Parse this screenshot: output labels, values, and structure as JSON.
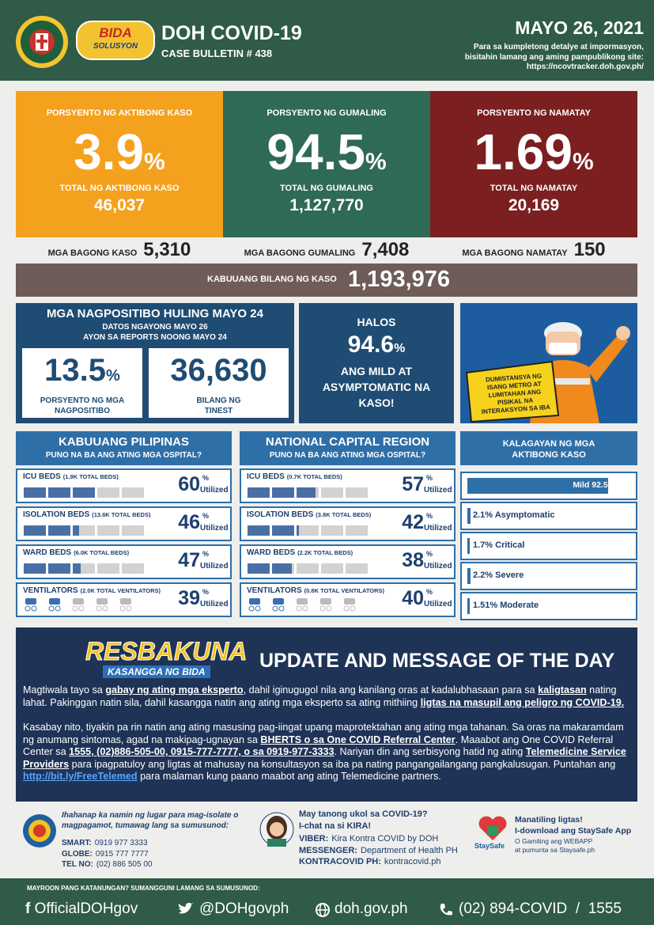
{
  "header": {
    "logo_top": "BIDA",
    "logo_bottom": "SOLUSYON",
    "title": "DOH COVID-19",
    "bulletin": "CASE BULLETIN # 438",
    "date": "MAYO 26, 2021",
    "note": "Para sa kumpletong detalye at impormasyon, bisitahin lamang ang aming pampublikong site:",
    "url": "https://ncovtracker.doh.gov.ph/"
  },
  "summary": [
    {
      "label": "PORSYENTO NG AKTIBONG KASO",
      "percent": "3.9",
      "unit": "%",
      "total_label": "TOTAL NG AKTIBONG KASO",
      "total": "46,037",
      "new_label": "MGA BAGONG KASO",
      "new": "5,310"
    },
    {
      "label": "PORSYENTO NG GUMALING",
      "percent": "94.5",
      "unit": "%",
      "total_label": "TOTAL NG GUMALING",
      "total": "1,127,770",
      "new_label": "MGA BAGONG GUMALING",
      "new": "7,408"
    },
    {
      "label": "PORSYENTO NG NAMATAY",
      "percent": "1.69",
      "unit": "%",
      "total_label": "TOTAL NG NAMATAY",
      "total": "20,169",
      "new_label": "MGA BAGONG NAMATAY",
      "new": "150"
    }
  ],
  "total": {
    "label": "KABUUANG BILANG NG KASO",
    "value": "1,193,976"
  },
  "positivity": {
    "title": "MGA NAGPOSITIBO HULING MAYO 24",
    "line1": "DATOS NGAYONG MAYO 26",
    "line2": "AYON SA REPORTS NOONG MAYO 24",
    "rate": "13.5",
    "unit": "%",
    "rate_label": "PORSYENTO NG MGA NAGPOSITIBO",
    "tested": "36,630",
    "tested_label": "BILANG NG TINEST"
  },
  "mild": {
    "lead": "HALOS",
    "percent": "94.6",
    "unit": "%",
    "text": "ANG MILD AT ASYMPTOMATIC NA KASO!"
  },
  "poster": {
    "text": "DUMISTANSYA NG ISANG METRO AT LUMITAHAN ANG PISIKAL NA INTERAKSYON SA IBA"
  },
  "hospitals": [
    {
      "title": "KABUUANG PILIPINAS",
      "subtitle": "PUNO NA BA ANG ATING MGA OSPITAL?",
      "rows": [
        {
          "label": "ICU BEDS",
          "detail": "(1.9K TOTAL BEDS)",
          "value": 60,
          "unit": "%",
          "status": "Utilized"
        },
        {
          "label": "ISOLATION BEDS",
          "detail": "(13.6K TOTAL BEDS)",
          "value": 46,
          "unit": "%",
          "status": "Utilized"
        },
        {
          "label": "WARD BEDS",
          "detail": "(6.0K TOTAL BEDS)",
          "value": 47,
          "unit": "%",
          "status": "Utilized"
        },
        {
          "label": "VENTILATORS",
          "detail": "(2.0K TOTAL VENTILATORS)",
          "value": 39,
          "unit": "%",
          "status": "Utilized"
        }
      ]
    },
    {
      "title": "NATIONAL CAPITAL REGION",
      "subtitle": "PUNO NA BA ANG ATING MGA OSPITAL?",
      "rows": [
        {
          "label": "ICU BEDS",
          "detail": "(0.7K TOTAL BEDS)",
          "value": 57,
          "unit": "%",
          "status": "Utilized"
        },
        {
          "label": "ISOLATION BEDS",
          "detail": "(3.8K TOTAL BEDS)",
          "value": 42,
          "unit": "%",
          "status": "Utilized"
        },
        {
          "label": "WARD BEDS",
          "detail": "(2.2K TOTAL BEDS)",
          "value": 38,
          "unit": "%",
          "status": "Utilized"
        },
        {
          "label": "VENTILATORS",
          "detail": "(0.8K TOTAL VENTILATORS)",
          "value": 40,
          "unit": "%",
          "status": "Utilized"
        }
      ]
    }
  ],
  "statuses": {
    "title": "KALAGAYAN NG MGA AKTIBONG KASO",
    "items": [
      {
        "value": 92.5,
        "label": "Mild 92.5%"
      },
      {
        "value": 2.1,
        "label": "2.1% Asymptomatic"
      },
      {
        "value": 1.7,
        "label": "1.7% Critical"
      },
      {
        "value": 2.2,
        "label": "2.2% Severe"
      },
      {
        "value": 1.51,
        "label": "1.51% Moderate"
      }
    ]
  },
  "message": {
    "logo": "RESBAKUNA",
    "logo_sub": "KASANGGA NG BIDA",
    "heading": "UPDATE AND MESSAGE OF THE DAY",
    "paragraphs": [
      [
        "Magtiwala tayo sa ",
        {
          "text": "gabay ng ating mga eksperto",
          "emphasis": true
        },
        ", dahil iginugugol nila ang kanilang oras at kadalubhasaan para sa ",
        {
          "text": "kaligtasan",
          "emphasis": true
        },
        " nating lahat. Pakinggan natin sila, dahil kasangga natin ang ating mga eksperto sa ating mithiing ",
        {
          "text": "ligtas na masupil ang peligro ng COVID-19.",
          "emphasis": true
        }
      ],
      [
        "Kasabay nito, tiyakin pa rin natin ang ating masusing pag-iingat upang maprotektahan ang ating mga tahanan. Sa oras na makaramdam ng anumang sintomas, agad na makipag-ugnayan sa ",
        {
          "text": "BHERTS o sa One COVID Referral Center",
          "emphasis": true
        },
        ". Maaabot ang One COVID Referral Center sa ",
        {
          "text": "1555, (02)886-505-00, 0915-777-7777, o sa 0919-977-3333",
          "emphasis": true
        },
        ". Nariyan din ang serbisyong hatid ng ating ",
        {
          "text": "Telemedicine Service Providers",
          "emphasis": true
        },
        " para ipagpatuloy ang ligtas at mahusay na konsultasyon sa iba pa nating pangangailangang pangkalusugan. Puntahan ang ",
        {
          "text": "http://bit.ly/FreeTelemed",
          "link": true
        },
        " para malaman kung paano maabot ang ating Telemedicine partners."
      ]
    ]
  },
  "contacts": {
    "isolation": {
      "text": "Ihahanap ka namin ng lugar para mag-isolate o magpagamot, tumawag lang sa sumusunod:",
      "lines": [
        [
          "SMART:",
          "0919 977 3333"
        ],
        [
          "GLOBE:",
          "0915 777 7777"
        ],
        [
          "TEL NO:",
          "(02) 886 505 00"
        ]
      ]
    },
    "kira": {
      "q": "May tanong ukol sa COVID-19?",
      "cta": "I-chat na si KIRA!",
      "lines": [
        [
          "VIBER:",
          "Kira Kontra COVID by DOH"
        ],
        [
          "MESSENGER:",
          "Department of Health PH"
        ],
        [
          "KONTRACOVID PH:",
          "kontracovid.ph"
        ]
      ]
    },
    "staysafe": {
      "logo": "StaySafe",
      "l1": "Manatiling ligtas!",
      "l2": "I-download ang StaySafe App",
      "l3": "O Gamiting ang WEBAPP",
      "l4": "at pumunta sa Staysafe.ph"
    }
  },
  "footer": {
    "prompt": "MAYROON PANG KATANUNGAN? SUMANGGUNI LAMANG SA SUMUSUNOD:",
    "facebook": "OfficialDOHgov",
    "twitter": "@DOHgovph",
    "web": "doh.gov.ph",
    "phone": "(02) 894-COVID",
    "sep": "/",
    "hotline": "1555"
  }
}
